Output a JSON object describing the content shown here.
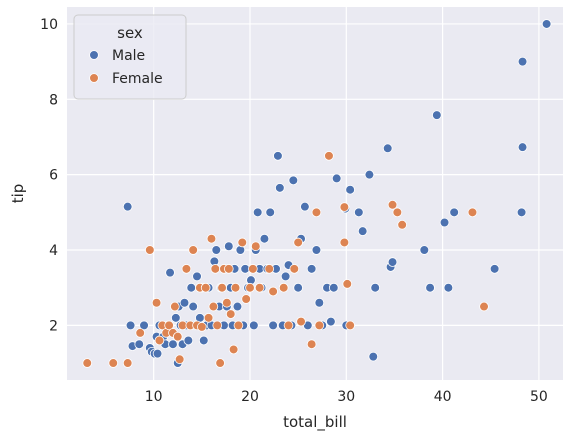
{
  "chart_data": {
    "type": "scatter",
    "xlabel": "total_bill",
    "ylabel": "tip",
    "xlim": [
      1.0,
      52.5
    ],
    "ylim": [
      0.55,
      10.45
    ],
    "xticks": [
      10,
      20,
      30,
      40,
      50
    ],
    "yticks": [
      2,
      4,
      6,
      8,
      10
    ],
    "grid": true,
    "legend": {
      "title": "sex",
      "placement": "top-left"
    },
    "colors": {
      "Male": "#4c72b0",
      "Female": "#dd8452",
      "background": "#eaeaf2",
      "grid": "#ffffff"
    },
    "series": [
      {
        "name": "Male",
        "points": [
          [
            7.3,
            5.15
          ],
          [
            7.6,
            2.0
          ],
          [
            7.8,
            1.45
          ],
          [
            8.5,
            1.5
          ],
          [
            9.0,
            2.0
          ],
          [
            9.6,
            1.4
          ],
          [
            9.8,
            1.3
          ],
          [
            10.1,
            1.25
          ],
          [
            10.3,
            1.7
          ],
          [
            10.4,
            1.25
          ],
          [
            10.6,
            2.0
          ],
          [
            11.0,
            1.7
          ],
          [
            11.2,
            1.5
          ],
          [
            11.5,
            2.0
          ],
          [
            11.7,
            3.4
          ],
          [
            12.0,
            1.5
          ],
          [
            12.3,
            2.2
          ],
          [
            12.5,
            1.0
          ],
          [
            12.6,
            2.5
          ],
          [
            12.8,
            2.0
          ],
          [
            13.0,
            1.5
          ],
          [
            13.2,
            2.6
          ],
          [
            13.4,
            2.0
          ],
          [
            13.6,
            1.6
          ],
          [
            13.9,
            3.0
          ],
          [
            14.1,
            2.5
          ],
          [
            14.3,
            2.0
          ],
          [
            14.5,
            3.3
          ],
          [
            14.8,
            2.2
          ],
          [
            15.0,
            3.0
          ],
          [
            15.2,
            1.6
          ],
          [
            15.5,
            2.0
          ],
          [
            15.7,
            3.0
          ],
          [
            16.0,
            2.0
          ],
          [
            16.3,
            3.7
          ],
          [
            16.5,
            4.0
          ],
          [
            16.8,
            2.5
          ],
          [
            17.0,
            3.0
          ],
          [
            17.3,
            2.0
          ],
          [
            17.6,
            2.5
          ],
          [
            17.8,
            4.1
          ],
          [
            18.0,
            3.0
          ],
          [
            18.2,
            2.0
          ],
          [
            18.4,
            3.5
          ],
          [
            18.7,
            2.5
          ],
          [
            19.0,
            4.0
          ],
          [
            19.3,
            2.0
          ],
          [
            19.5,
            3.5
          ],
          [
            19.8,
            3.0
          ],
          [
            20.1,
            3.2
          ],
          [
            20.4,
            2.0
          ],
          [
            20.6,
            4.0
          ],
          [
            20.8,
            5.0
          ],
          [
            21.0,
            3.5
          ],
          [
            21.2,
            3.0
          ],
          [
            21.5,
            4.3
          ],
          [
            21.8,
            3.5
          ],
          [
            22.1,
            5.0
          ],
          [
            22.4,
            2.0
          ],
          [
            22.7,
            3.5
          ],
          [
            22.9,
            6.5
          ],
          [
            23.1,
            5.65
          ],
          [
            23.4,
            2.0
          ],
          [
            23.7,
            3.3
          ],
          [
            24.0,
            3.6
          ],
          [
            24.3,
            2.0
          ],
          [
            24.5,
            5.85
          ],
          [
            25.0,
            3.0
          ],
          [
            25.3,
            4.3
          ],
          [
            25.7,
            5.15
          ],
          [
            26.0,
            2.0
          ],
          [
            26.4,
            3.5
          ],
          [
            26.9,
            4.0
          ],
          [
            27.2,
            2.6
          ],
          [
            27.5,
            2.0
          ],
          [
            28.0,
            3.0
          ],
          [
            28.4,
            2.1
          ],
          [
            28.7,
            3.0
          ],
          [
            29.0,
            5.9
          ],
          [
            29.9,
            5.1
          ],
          [
            30.0,
            2.0
          ],
          [
            30.4,
            5.6
          ],
          [
            31.3,
            5.0
          ],
          [
            31.7,
            4.5
          ],
          [
            32.4,
            6.0
          ],
          [
            32.8,
            1.17
          ],
          [
            33.0,
            3.0
          ],
          [
            34.3,
            6.7
          ],
          [
            34.6,
            3.55
          ],
          [
            34.8,
            3.68
          ],
          [
            38.1,
            4.0
          ],
          [
            38.7,
            3.0
          ],
          [
            39.4,
            7.58
          ],
          [
            40.2,
            4.73
          ],
          [
            40.6,
            3.0
          ],
          [
            41.2,
            5.0
          ],
          [
            45.4,
            3.5
          ],
          [
            48.2,
            5.0
          ],
          [
            48.3,
            9.0
          ],
          [
            48.3,
            6.73
          ],
          [
            50.8,
            10.0
          ]
        ]
      },
      {
        "name": "Female",
        "points": [
          [
            3.1,
            1.0
          ],
          [
            5.8,
            1.0
          ],
          [
            7.3,
            1.0
          ],
          [
            8.6,
            1.8
          ],
          [
            9.6,
            4.0
          ],
          [
            10.3,
            2.6
          ],
          [
            10.6,
            1.6
          ],
          [
            10.9,
            2.0
          ],
          [
            11.3,
            1.8
          ],
          [
            11.6,
            2.0
          ],
          [
            12.0,
            1.8
          ],
          [
            12.2,
            2.5
          ],
          [
            12.5,
            1.7
          ],
          [
            12.7,
            1.1
          ],
          [
            13.0,
            2.0
          ],
          [
            13.4,
            3.5
          ],
          [
            13.8,
            2.0
          ],
          [
            14.1,
            4.0
          ],
          [
            14.5,
            2.0
          ],
          [
            14.8,
            3.0
          ],
          [
            15.0,
            1.96
          ],
          [
            15.4,
            3.0
          ],
          [
            15.7,
            2.2
          ],
          [
            16.0,
            4.3
          ],
          [
            16.2,
            2.5
          ],
          [
            16.4,
            3.5
          ],
          [
            16.6,
            2.0
          ],
          [
            16.9,
            1.0
          ],
          [
            17.1,
            3.0
          ],
          [
            17.3,
            3.5
          ],
          [
            17.6,
            2.6
          ],
          [
            17.8,
            3.5
          ],
          [
            18.0,
            2.3
          ],
          [
            18.3,
            1.36
          ],
          [
            18.5,
            3.0
          ],
          [
            18.8,
            2.0
          ],
          [
            19.2,
            4.2
          ],
          [
            19.6,
            2.7
          ],
          [
            20.0,
            3.0
          ],
          [
            20.3,
            3.5
          ],
          [
            20.6,
            4.1
          ],
          [
            21.0,
            3.0
          ],
          [
            22.0,
            3.5
          ],
          [
            22.4,
            2.9
          ],
          [
            23.5,
            3.0
          ],
          [
            24.0,
            2.0
          ],
          [
            24.6,
            3.5
          ],
          [
            25.0,
            4.2
          ],
          [
            25.3,
            2.1
          ],
          [
            26.4,
            1.5
          ],
          [
            26.9,
            5.0
          ],
          [
            27.2,
            2.0
          ],
          [
            28.2,
            6.5
          ],
          [
            29.8,
            5.14
          ],
          [
            29.8,
            4.2
          ],
          [
            30.1,
            3.1
          ],
          [
            30.4,
            2.0
          ],
          [
            34.8,
            5.2
          ],
          [
            35.3,
            5.0
          ],
          [
            35.8,
            4.67
          ],
          [
            43.1,
            5.0
          ],
          [
            44.3,
            2.5
          ]
        ]
      }
    ]
  }
}
